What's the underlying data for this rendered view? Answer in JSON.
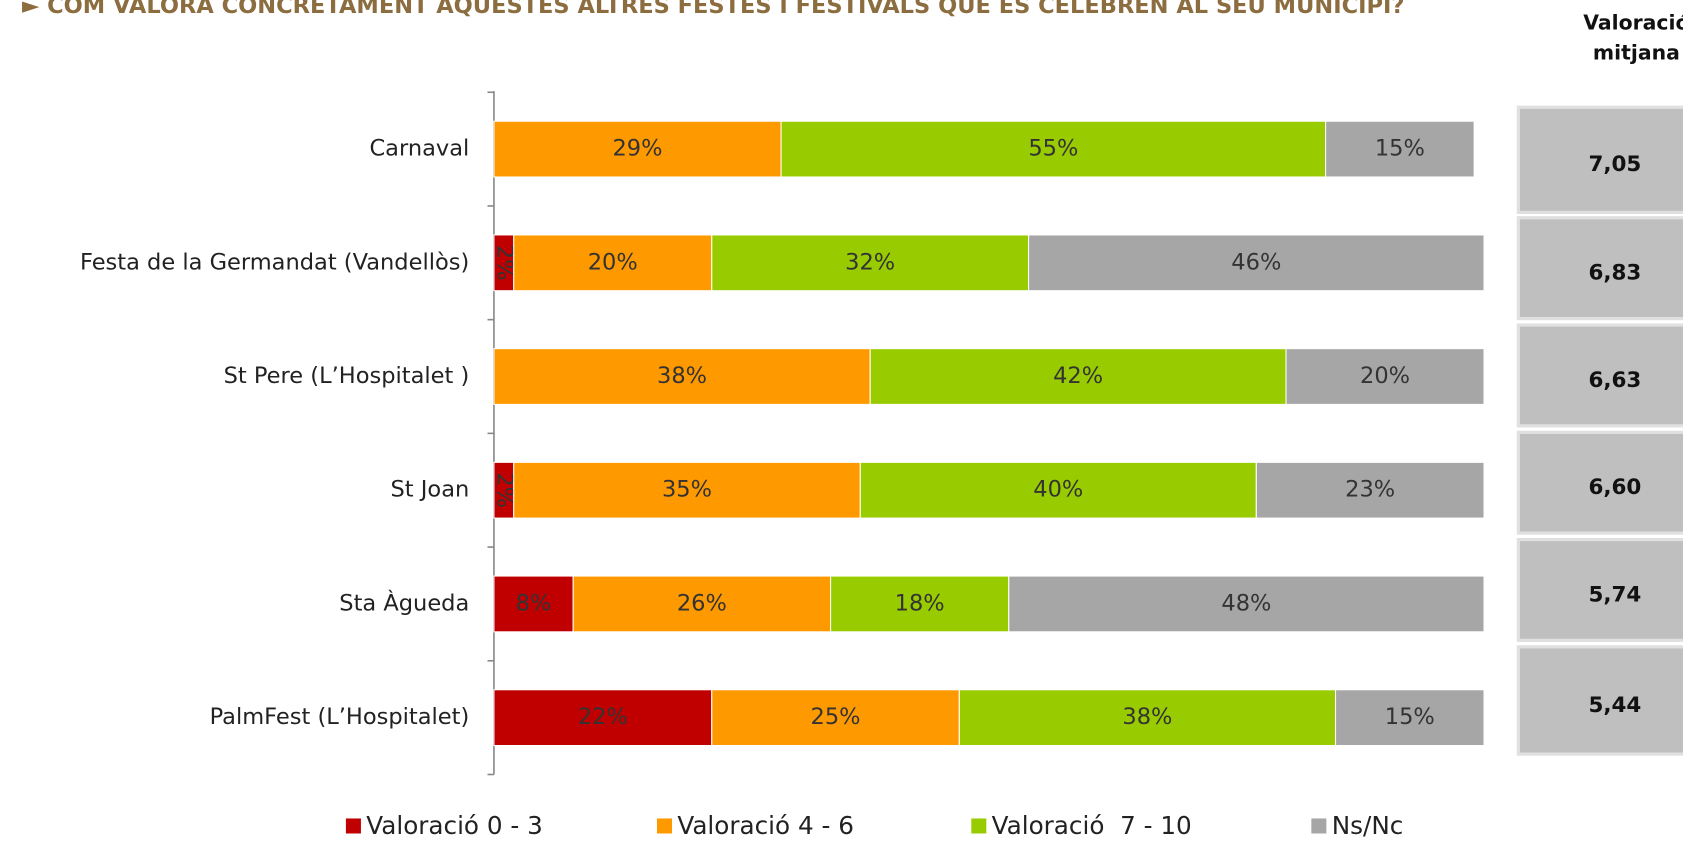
{
  "chart_data": {
    "type": "stacked_barh",
    "title": "► COM VALORA CONCRETAMENT AQUESTES ALTRES FESTES I FESTIVALS QUE ES CELEBREN AL SEU MUNICIPI?",
    "categories": [
      "Carnaval",
      "Festa de la Germandat (Vandellòs)",
      "St Pere (L’Hospitalet )",
      "St Joan",
      "Sta Àgueda",
      "PalmFest (L’Hospitalet)"
    ],
    "xlim": [
      0,
      100
    ],
    "series": [
      {
        "name": "Valoració 0 - 3",
        "color": "#c00000",
        "values": [
          null,
          2,
          null,
          2,
          8,
          22
        ],
        "value_labels": [
          null,
          "2%",
          null,
          "2%",
          "8%",
          "22%"
        ]
      },
      {
        "name": "Valoració 4 - 6",
        "color": "#ff9900",
        "values": [
          29,
          20,
          38,
          35,
          26,
          25
        ],
        "value_labels": [
          "29%",
          "20%",
          "38%",
          "35%",
          "26%",
          "25%"
        ]
      },
      {
        "name": "Valoració  7 - 10",
        "color": "#99cc00",
        "values": [
          55,
          32,
          42,
          40,
          18,
          38
        ],
        "value_labels": [
          "55%",
          "32%",
          "42%",
          "40%",
          "18%",
          "38%"
        ]
      },
      {
        "name": "Ns/Nc",
        "color": "#a6a6a6",
        "values": [
          15,
          46,
          20,
          23,
          48,
          15
        ],
        "value_labels": [
          "15%",
          "46%",
          "20%",
          "23%",
          "48%",
          "15%"
        ]
      }
    ],
    "averages": {
      "header": [
        "Valoració",
        "mitjana"
      ],
      "values": [
        7.05,
        6.83,
        6.63,
        6.6,
        5.74,
        5.44
      ],
      "value_labels": [
        "7,05",
        "6,83",
        "6,63",
        "6,60",
        "5,74",
        "5,44"
      ]
    }
  }
}
